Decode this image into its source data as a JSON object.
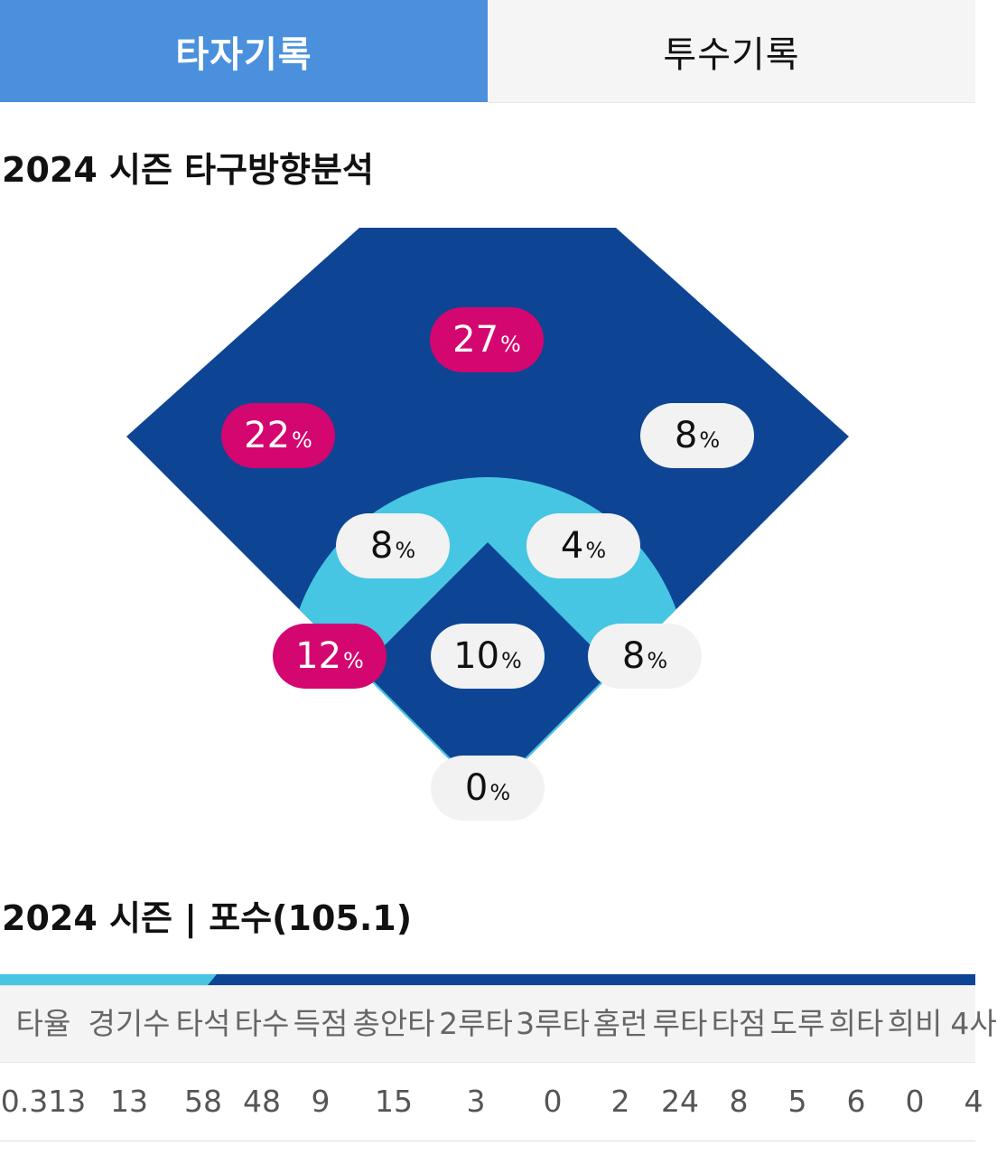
{
  "tabs": [
    {
      "label": "타자기록",
      "active": true
    },
    {
      "label": "투수기록",
      "active": false
    }
  ],
  "spray": {
    "title": "2024 시즌 타구방향분석",
    "colors": {
      "outfield": "#0e4494",
      "infield_grass": "#47c6e3",
      "hot": "#d4066f",
      "cold": "#f2f2f2"
    },
    "zones": [
      {
        "id": "center-field",
        "value": "27",
        "unit": "%",
        "hot": true
      },
      {
        "id": "left-field",
        "value": "22",
        "unit": "%",
        "hot": true
      },
      {
        "id": "right-field",
        "value": "8",
        "unit": "%",
        "hot": false
      },
      {
        "id": "shortstop",
        "value": "8",
        "unit": "%",
        "hot": false
      },
      {
        "id": "second-base",
        "value": "4",
        "unit": "%",
        "hot": false
      },
      {
        "id": "third-base",
        "value": "12",
        "unit": "%",
        "hot": true
      },
      {
        "id": "pitcher",
        "value": "10",
        "unit": "%",
        "hot": false
      },
      {
        "id": "first-base",
        "value": "8",
        "unit": "%",
        "hot": false
      },
      {
        "id": "catcher",
        "value": "0",
        "unit": "%",
        "hot": false
      }
    ]
  },
  "season_stats": {
    "title": "2024 시즌 | 포수(105.1)",
    "headers": [
      "타율",
      "경기수",
      "타석",
      "타수",
      "득점",
      "총안타",
      "2루타",
      "3루타",
      "홈런",
      "루타",
      "타점",
      "도루",
      "희타",
      "희비",
      "4사"
    ],
    "values": [
      "0.313",
      "13",
      "58",
      "48",
      "9",
      "15",
      "3",
      "0",
      "2",
      "24",
      "8",
      "5",
      "6",
      "0",
      "4"
    ]
  }
}
